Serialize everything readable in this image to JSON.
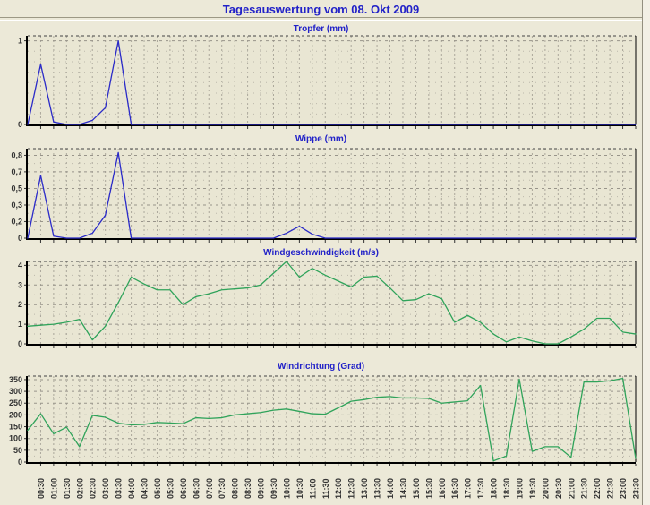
{
  "page": {
    "title": "Tagesauswertung vom 08. Okt 2009"
  },
  "colors": {
    "background": "#ECE9D8",
    "plot_background": "#E9E6D3",
    "title_blue": "#2222C8",
    "grid_major": "#98948A",
    "grid_minor": "#BCB8AB",
    "grid_vertical": "#ABA79B",
    "axis_black": "#000000",
    "tick_label": "#333333",
    "rain_line_blue": "#2A2AC8",
    "wind_line_green": "#2FA35A"
  },
  "x_axis": {
    "start_time": "00:00",
    "step_minutes": 30,
    "labels": [
      "00:30",
      "01:00",
      "01:30",
      "02:00",
      "02:30",
      "03:00",
      "03:30",
      "04:00",
      "04:30",
      "05:00",
      "05:30",
      "06:00",
      "06:30",
      "07:00",
      "07:30",
      "08:00",
      "08:30",
      "09:00",
      "09:30",
      "10:00",
      "10:30",
      "11:00",
      "11:30",
      "12:00",
      "12:30",
      "13:00",
      "13:30",
      "14:00",
      "14:30",
      "15:00",
      "15:30",
      "16:00",
      "16:30",
      "17:00",
      "17:30",
      "18:00",
      "18:30",
      "19:00",
      "19:30",
      "20:00",
      "20:30",
      "21:00",
      "21:30",
      "22:00",
      "22:30",
      "23:00",
      "23:30"
    ]
  },
  "chart_data": [
    {
      "id": "tropfer",
      "type": "line",
      "title": "Tropfer (mm)",
      "color": "#2A2AC8",
      "ylim": [
        0,
        1.06
      ],
      "yticks": [
        {
          "v": 1,
          "label": "1"
        },
        {
          "v": 0,
          "label": "0"
        }
      ],
      "minor_y": [
        0.125,
        0.25,
        0.375,
        0.5,
        0.625,
        0.75,
        0.875
      ],
      "values": [
        0,
        0.72,
        0.03,
        0,
        0,
        0.05,
        0.2,
        1.0,
        0,
        0,
        0,
        0,
        0,
        0,
        0,
        0,
        0,
        0,
        0,
        0,
        0,
        0,
        0,
        0,
        0,
        0,
        0,
        0,
        0,
        0,
        0,
        0,
        0,
        0,
        0,
        0,
        0,
        0,
        0,
        0,
        0,
        0,
        0,
        0,
        0,
        0,
        0,
        0
      ]
    },
    {
      "id": "wippe",
      "type": "line",
      "title": "Wippe (mm)",
      "color": "#2A2AC8",
      "ylim": [
        0,
        0.9
      ],
      "yticks": [
        {
          "v": 0.833,
          "label": "0,8"
        },
        {
          "v": 0.667,
          "label": "0,7"
        },
        {
          "v": 0.5,
          "label": "0,5"
        },
        {
          "v": 0.333,
          "label": "0,3"
        },
        {
          "v": 0.167,
          "label": "0,2"
        },
        {
          "v": 0,
          "label": "0"
        }
      ],
      "minor_y": [
        0.083,
        0.25,
        0.417,
        0.583,
        0.75
      ],
      "values": [
        0,
        0.63,
        0.02,
        0,
        0,
        0.05,
        0.23,
        0.86,
        0,
        0,
        0,
        0,
        0,
        0,
        0,
        0,
        0,
        0,
        0,
        0,
        0.05,
        0.12,
        0.04,
        0,
        0,
        0,
        0,
        0,
        0,
        0,
        0,
        0,
        0,
        0,
        0,
        0,
        0,
        0,
        0,
        0,
        0,
        0,
        0,
        0,
        0,
        0,
        0,
        0
      ]
    },
    {
      "id": "windgeschwindigkeit",
      "type": "line",
      "title": "Windgeschwindigkeit (m/s)",
      "color": "#2FA35A",
      "ylim": [
        0,
        4.2
      ],
      "yticks": [
        {
          "v": 4,
          "label": "4"
        },
        {
          "v": 3,
          "label": "3"
        },
        {
          "v": 2,
          "label": "2"
        },
        {
          "v": 1,
          "label": "1"
        },
        {
          "v": 0,
          "label": "0"
        }
      ],
      "minor_y": [
        0.5,
        1.5,
        2.5,
        3.5
      ],
      "values": [
        0.9,
        0.95,
        1.0,
        1.1,
        1.25,
        0.2,
        0.9,
        2.1,
        3.4,
        3.05,
        2.75,
        2.75,
        2.0,
        2.4,
        2.55,
        2.75,
        2.8,
        2.85,
        3.0,
        3.6,
        4.2,
        3.4,
        3.85,
        3.5,
        3.2,
        2.9,
        3.4,
        3.45,
        2.85,
        2.2,
        2.25,
        2.55,
        2.3,
        1.1,
        1.45,
        1.1,
        0.5,
        0.1,
        0.35,
        0.15,
        0,
        0,
        0.35,
        0.75,
        1.3,
        1.3,
        0.6,
        0.5
      ]
    },
    {
      "id": "windrichtung",
      "type": "line",
      "title": "Windrichtung (Grad)",
      "color": "#2FA35A",
      "ylim": [
        0,
        365
      ],
      "yticks": [
        {
          "v": 350,
          "label": "350"
        },
        {
          "v": 300,
          "label": "300"
        },
        {
          "v": 250,
          "label": "250"
        },
        {
          "v": 200,
          "label": "200"
        },
        {
          "v": 150,
          "label": "150"
        },
        {
          "v": 100,
          "label": "100"
        },
        {
          "v": 50,
          "label": "50"
        },
        {
          "v": 0,
          "label": "0"
        }
      ],
      "minor_y": [
        25,
        75,
        125,
        175,
        225,
        275,
        325
      ],
      "values": [
        135,
        205,
        120,
        148,
        65,
        198,
        190,
        165,
        158,
        160,
        168,
        166,
        163,
        188,
        185,
        188,
        200,
        205,
        210,
        220,
        225,
        215,
        205,
        203,
        230,
        258,
        265,
        275,
        278,
        272,
        272,
        270,
        250,
        255,
        260,
        325,
        5,
        25,
        352,
        45,
        65,
        65,
        20,
        340,
        340,
        345,
        355,
        15
      ]
    }
  ]
}
